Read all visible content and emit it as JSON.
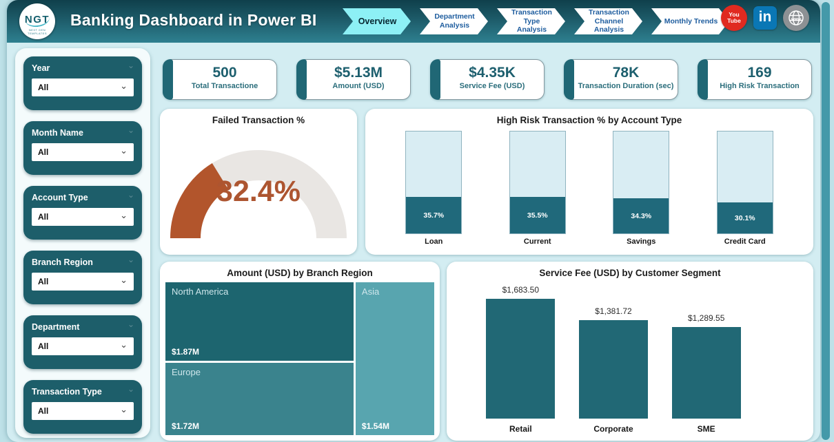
{
  "header": {
    "logo": {
      "text": "NGT",
      "tagline": "NEXT GEN TEMPLATES"
    },
    "title": "Banking Dashboard in Power BI",
    "nav": [
      {
        "label": "Overview",
        "active": true
      },
      {
        "label": "Department Analysis",
        "active": false
      },
      {
        "label": "Transaction Type Analysis",
        "active": false
      },
      {
        "label": "Transaction Channel Analysis",
        "active": false
      },
      {
        "label": "Monthly Trends",
        "active": false
      }
    ],
    "social": [
      {
        "name": "youtube-icon",
        "color": "#e02a20",
        "lines": [
          "You",
          "Tube"
        ]
      },
      {
        "name": "linkedin-icon",
        "color": "#0a77b5",
        "label": "in"
      },
      {
        "name": "website-icon",
        "color": "#8d9194",
        "label": "www"
      }
    ]
  },
  "filters": [
    {
      "label": "Year",
      "value": "All"
    },
    {
      "label": "Month Name",
      "value": "All"
    },
    {
      "label": "Account Type",
      "value": "All"
    },
    {
      "label": "Branch Region",
      "value": "All"
    },
    {
      "label": "Department",
      "value": "All"
    },
    {
      "label": "Transaction Type",
      "value": "All"
    }
  ],
  "kpis": [
    {
      "value": "500",
      "label": "Total Transactione"
    },
    {
      "value": "$5.13M",
      "label": "Amount (USD)"
    },
    {
      "value": "$4.35K",
      "label": "Service Fee (USD)"
    },
    {
      "value": "78K",
      "label": "Transaction Duration (sec)"
    },
    {
      "value": "169",
      "label": "High Risk Transaction"
    }
  ],
  "theme": {
    "accent_teal": "#1d5f6e",
    "filter_card_bg": "#1d5e6a",
    "nav_active": "#8df0f5",
    "header_gradient_top": "#0f3f4b",
    "header_gradient_bottom": "#2e8090",
    "content_bg": "#d3edf2",
    "gauge_value_color": "#ad5530"
  },
  "chart_data": [
    {
      "type": "gauge",
      "title": "Failed Transaction %",
      "value": 32.4,
      "min": 0,
      "max": 100,
      "display": "32.4%",
      "fill_color": "#b2552c",
      "track_color": "#e9e6e3"
    },
    {
      "type": "bar",
      "variant": "stacked-100-percent-columns",
      "title": "High Risk Transaction % by Account Type",
      "categories": [
        "Loan",
        "Current",
        "Savings",
        "Credit Card"
      ],
      "values": [
        35.7,
        35.5,
        34.3,
        30.1
      ],
      "labels": [
        "35.7%",
        "35.5%",
        "34.3%",
        "30.1%"
      ],
      "ylim": [
        0,
        100
      ],
      "grid": false,
      "legend": "none",
      "filled_color": "#20697b",
      "remainder_color": "#d9edf3"
    },
    {
      "type": "treemap",
      "title": "Amount (USD) by Branch Region",
      "items": [
        {
          "name": "North America",
          "value": 1.87,
          "label": "$1.87M",
          "color": "#1d656f"
        },
        {
          "name": "Europe",
          "value": 1.72,
          "label": "$1.72M",
          "color": "#3a838d"
        },
        {
          "name": "Asia",
          "value": 1.54,
          "label": "$1.54M",
          "color": "#58a5af"
        }
      ],
      "value_unit": "USD millions"
    },
    {
      "type": "bar",
      "title": "Service Fee (USD) by Customer Segment",
      "categories": [
        "Retail",
        "Corporate",
        "SME"
      ],
      "values": [
        1683.5,
        1381.72,
        1289.55
      ],
      "labels": [
        "$1,683.50",
        "$1,381.72",
        "$1,289.55"
      ],
      "ylim": [
        0,
        1800
      ],
      "grid": false,
      "legend": "none",
      "bar_color": "#216875"
    }
  ]
}
